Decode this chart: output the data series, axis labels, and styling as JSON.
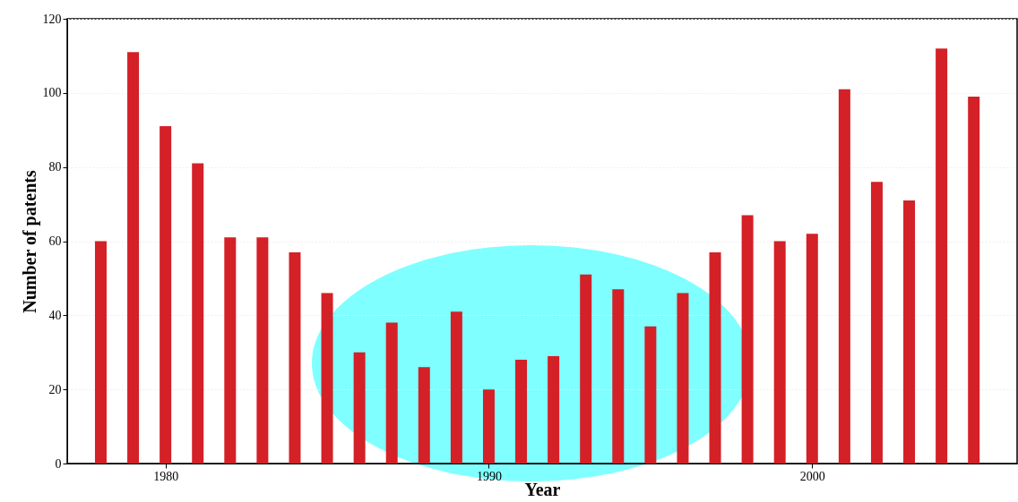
{
  "chart_data": {
    "type": "bar",
    "xlabel": "Year",
    "ylabel": "Number of patents",
    "x": [
      1978,
      1979,
      1980,
      1981,
      1982,
      1983,
      1984,
      1985,
      1986,
      1987,
      1988,
      1989,
      1990,
      1991,
      1992,
      1993,
      1994,
      1995,
      1996,
      1997,
      1998,
      1999,
      2000,
      2001,
      2002,
      2003,
      2004,
      2005
    ],
    "values": [
      60,
      111,
      91,
      81,
      61,
      61,
      57,
      46,
      30,
      38,
      26,
      41,
      20,
      28,
      29,
      51,
      47,
      37,
      46,
      57,
      67,
      60,
      62,
      101,
      76,
      71,
      112,
      99
    ],
    "color": "#d42027",
    "xlim": [
      1977.1,
      2006.2
    ],
    "xticks": [
      1980,
      1990,
      2000
    ],
    "ylim": [
      0,
      120
    ],
    "yticks": [
      0,
      20,
      40,
      60,
      80,
      100,
      120
    ],
    "grid": "y"
  }
}
